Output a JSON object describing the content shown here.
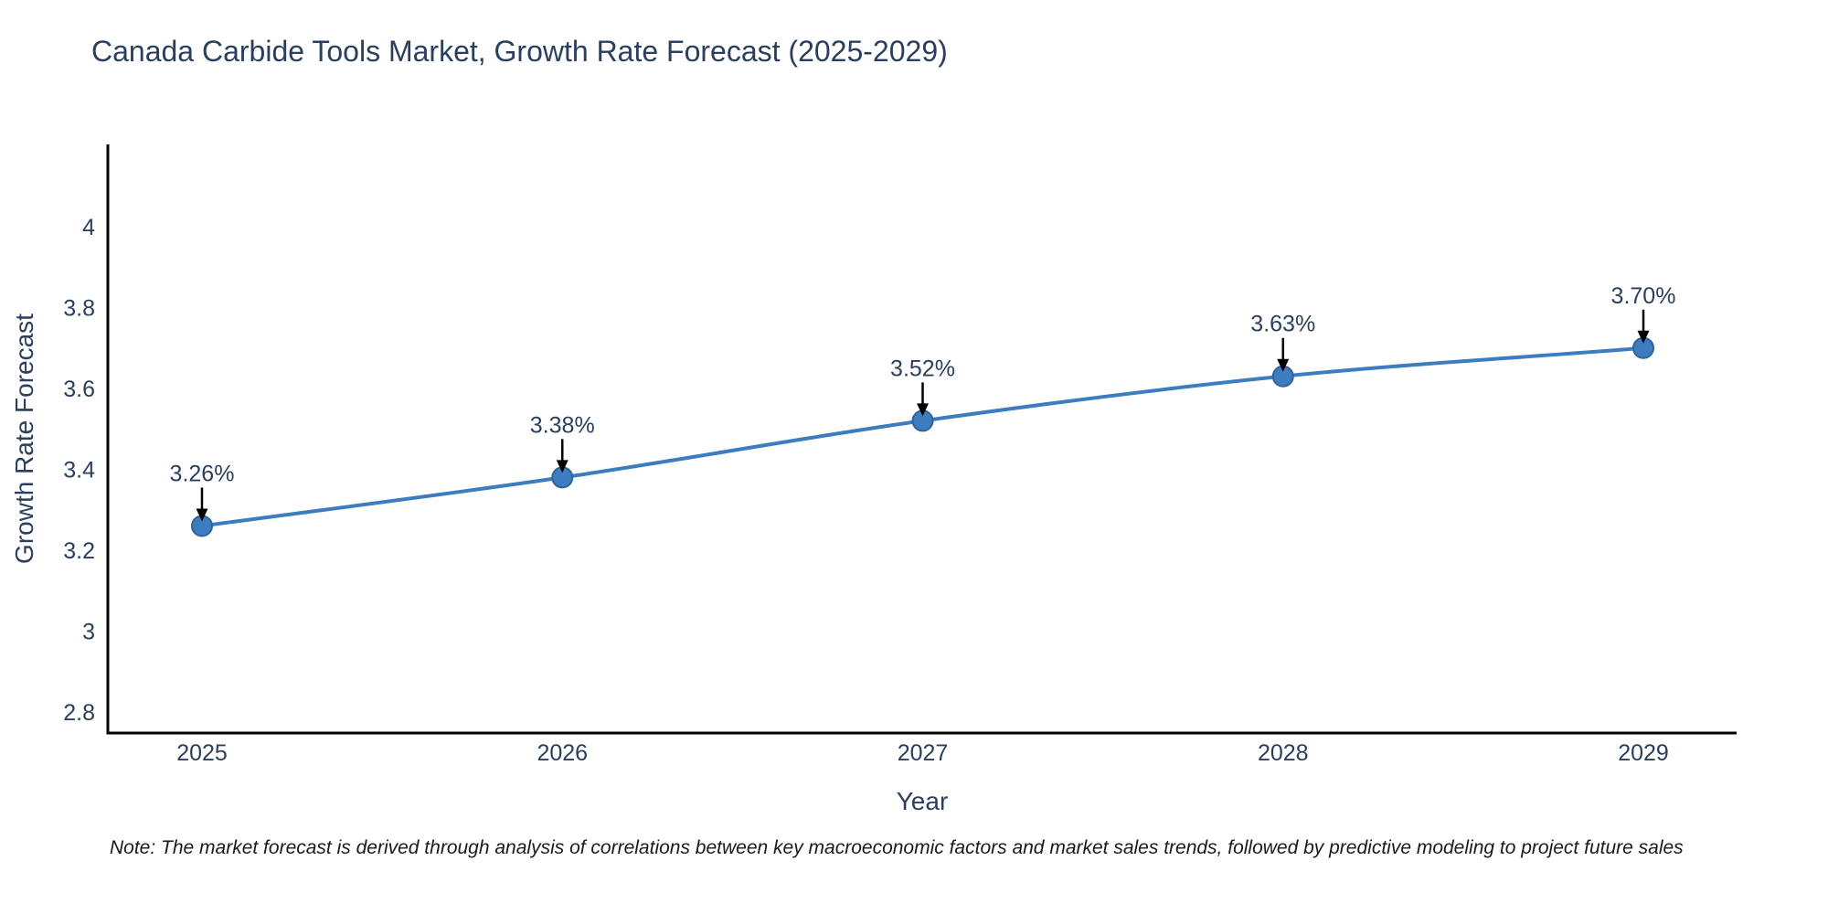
{
  "chart_data": {
    "type": "line",
    "title": "Canada Carbide Tools Market, Growth Rate Forecast (2025-2029)",
    "xlabel": "Year",
    "ylabel": "Growth Rate Forecast",
    "categories": [
      "2025",
      "2026",
      "2027",
      "2028",
      "2029"
    ],
    "values": [
      3.26,
      3.38,
      3.52,
      3.63,
      3.7
    ],
    "point_labels": [
      "3.26%",
      "3.38%",
      "3.52%",
      "3.63%",
      "3.70%"
    ],
    "ytick_labels": [
      "4",
      "3.8",
      "3.6",
      "3.4",
      "3.2",
      "3",
      "2.8"
    ],
    "ytick_values": [
      4.0,
      3.8,
      3.6,
      3.4,
      3.2,
      3.0,
      2.8
    ],
    "ylim": [
      2.75,
      4.21
    ],
    "grid": false,
    "legend": "none",
    "line_shape": "spline",
    "colors": {
      "line": "#3d7dbf",
      "marker_fill": "#3d7dbf",
      "marker_edge": "#2e639c",
      "arrow": "#000000",
      "axis": "#000000",
      "text": "#2a3f5f",
      "title": "#2a3f5f"
    }
  },
  "note": {
    "text": "Note: The market forecast is derived through analysis of correlations between key macroeconomic factors and market sales trends, followed by predictive modeling to project future sales"
  }
}
